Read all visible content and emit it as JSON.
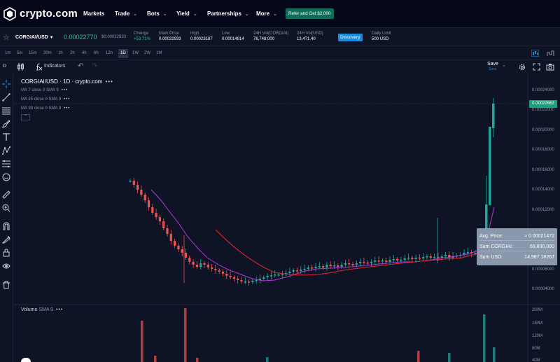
{
  "brand": {
    "name": "crypto.com"
  },
  "nav": {
    "items": [
      {
        "label": "Markets",
        "has_menu": false
      },
      {
        "label": "Trade",
        "has_menu": true
      },
      {
        "label": "Bots",
        "has_menu": true
      },
      {
        "label": "Yield",
        "has_menu": true
      },
      {
        "label": "Partnerships",
        "has_menu": true
      },
      {
        "label": "More",
        "has_menu": true
      }
    ],
    "refer_button": "Refer and Get $2,000"
  },
  "ticker": {
    "pair": "CORGIAI/USD",
    "price": "0.00022770",
    "sub_price": "$0.00022933",
    "stats": [
      {
        "label": "Change",
        "value": "+53.71%",
        "positive": true
      },
      {
        "label": "Mark Price",
        "value": "0.00022933"
      },
      {
        "label": "High",
        "value": "0.00023187"
      },
      {
        "label": "Low",
        "value": "0.00014814"
      },
      {
        "label": "24H Vol(CORGIAI)",
        "value": "76,748,000"
      },
      {
        "label": "24H Vol(USD)",
        "value": "13,471.40"
      },
      {
        "label": "Daily Limit",
        "value": "500 USD"
      }
    ],
    "discovery_button": "Discovery"
  },
  "timeframes": [
    "1m",
    "5m",
    "15m",
    "30m",
    "1h",
    "2h",
    "4h",
    "6h",
    "12h",
    "1D",
    "1W",
    "2W",
    "1M"
  ],
  "active_timeframe": "1D",
  "toolbar": {
    "interval_label": "D",
    "indicators_label": "Indicators",
    "save_label": "Save",
    "save_sub": "Save"
  },
  "legend": {
    "title": "CORGIAI/USD · 1D · crypto.com",
    "ma_lines": [
      "MA 7 close 0 SMA 9",
      "MA 25 close 0 SMA 9",
      "MA 99 close 0 SMA 9"
    ],
    "volume_label": "Volume",
    "volume_sub": "SMA 9"
  },
  "tooltip": {
    "avg_label": "Avg. Price:",
    "avg_value": "≈ 0.00021472",
    "sum_coin_label": "Sum CORGIAI:",
    "sum_coin_value": "69,800,000",
    "sum_usd_label": "Sum USD:",
    "sum_usd_value": "14,987.18267"
  },
  "price_axis": {
    "ticks": [
      "0.00024000",
      "0.00022000",
      "0.00020000",
      "0.00018000",
      "0.00016000",
      "0.00014000",
      "0.00012000",
      "0.00008000",
      "0.00006000",
      "0.00004000"
    ],
    "last_price_tag": "0.00022662"
  },
  "volume_axis": {
    "ticks": [
      "200M",
      "160M",
      "120M",
      "80M",
      "40M"
    ]
  },
  "colors": {
    "up": "#26a69a",
    "down": "#ef5350",
    "ma7": "#b23ad6",
    "ma25": "#e8282f",
    "accent": "#1a8bdc"
  },
  "icons": [
    "star-icon",
    "search-icon",
    "gear-icon",
    "fullscreen-icon",
    "camera-icon",
    "undo-icon",
    "redo-icon"
  ]
}
